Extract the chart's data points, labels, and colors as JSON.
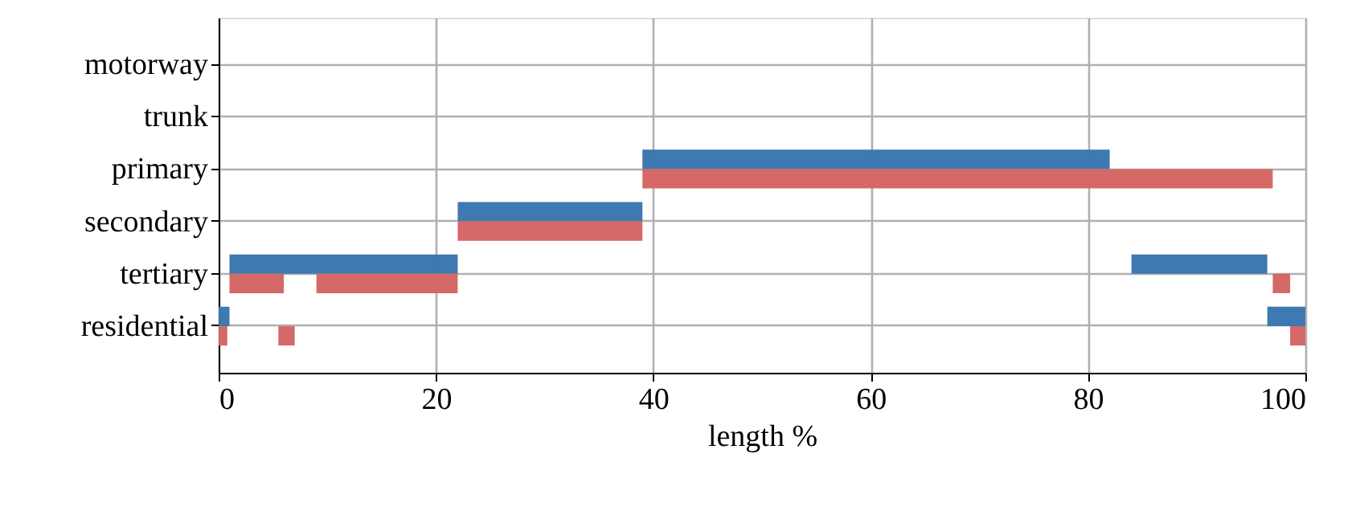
{
  "chart_data": {
    "type": "bar",
    "orientation": "horizontal",
    "xlabel": "length %",
    "categories": [
      "motorway",
      "trunk",
      "primary",
      "secondary",
      "tertiary",
      "residential"
    ],
    "series": [
      {
        "color": "#3a76af",
        "base": [
          null,
          null,
          39,
          22,
          1,
          0
        ],
        "values": [
          null,
          null,
          43,
          17,
          21,
          1
        ]
      },
      {
        "color": "#3a76af",
        "base": [
          null,
          null,
          null,
          null,
          84,
          96.5
        ],
        "values": [
          null,
          null,
          null,
          null,
          12.5,
          3.5
        ]
      },
      {
        "color": "#d46664",
        "base": [
          null,
          null,
          39,
          22,
          1,
          0
        ],
        "values": [
          null,
          null,
          58,
          17,
          5,
          0.8
        ]
      },
      {
        "color": "#d46664",
        "base": [
          null,
          null,
          null,
          null,
          9,
          5.5
        ],
        "values": [
          null,
          null,
          null,
          null,
          13,
          1.5
        ]
      },
      {
        "color": "#d46664",
        "base": [
          null,
          null,
          null,
          null,
          97,
          98.6
        ],
        "values": [
          null,
          null,
          null,
          null,
          1.6,
          1.4
        ]
      }
    ],
    "xlim": [
      0,
      100
    ],
    "xticks": [
      0,
      20,
      40,
      60,
      80,
      100
    ],
    "grid": true
  }
}
